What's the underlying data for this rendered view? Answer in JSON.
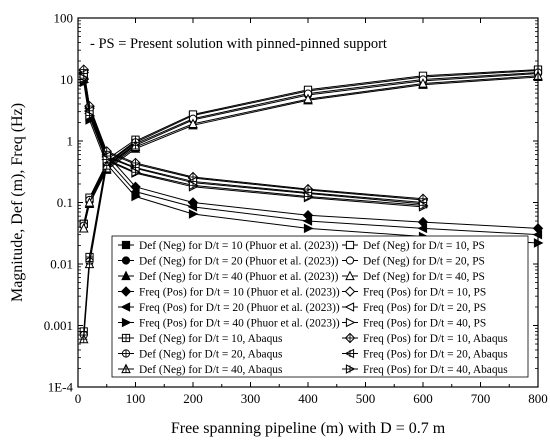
{
  "chart_data": {
    "type": "line",
    "annotation": "- PS = Present solution with pinned-pinned support",
    "xlabel": "Free spanning pipeline (m) with D = 0.7 m",
    "ylabel": "Magnitude, Def (m), Freq (Hz)",
    "xlim": [
      0,
      800
    ],
    "ylim": [
      0.0001,
      100
    ],
    "yscale": "log",
    "x_ticks": [
      "0",
      "100",
      "200",
      "300",
      "400",
      "500",
      "600",
      "700",
      "800"
    ],
    "y_ticks": [
      "1E-4",
      "0.001",
      "0.01",
      "0.1",
      "1",
      "10",
      "100"
    ],
    "legend_placement": "bottom",
    "series": [
      {
        "name": "Def (Neg) for D/t = 10 (Phuor et al. (2023))",
        "marker": "square",
        "fill": "solid",
        "x": [
          10,
          20,
          50,
          100,
          200,
          400,
          600,
          800
        ],
        "y": [
          0.045,
          0.115,
          0.42,
          0.95,
          2.6,
          6.5,
          11,
          14
        ]
      },
      {
        "name": "Def (Neg) for D/t = 20 (Phuor et al. (2023))",
        "marker": "circle",
        "fill": "solid",
        "x": [
          10,
          20,
          50,
          100,
          200,
          400,
          600,
          800
        ],
        "y": [
          0.042,
          0.105,
          0.38,
          0.85,
          2.2,
          5.6,
          9.5,
          12.5
        ]
      },
      {
        "name": "Def (Neg) for D/t = 40 (Phuor et al. (2023))",
        "marker": "triangle-up",
        "fill": "solid",
        "x": [
          10,
          20,
          50,
          100,
          200,
          400,
          600,
          800
        ],
        "y": [
          0.038,
          0.095,
          0.34,
          0.75,
          1.8,
          4.6,
          8.2,
          11
        ]
      },
      {
        "name": "Freq (Pos) for D/t = 10 (Phuor et al. (2023))",
        "marker": "diamond",
        "fill": "solid",
        "x": [
          10,
          20,
          50,
          100,
          200,
          400,
          600,
          800
        ],
        "y": [
          13,
          3.4,
          0.6,
          0.18,
          0.1,
          0.062,
          0.048,
          0.038
        ]
      },
      {
        "name": "Freq (Pos) for D/t = 20 (Phuor et al. (2023))",
        "marker": "triangle-left",
        "fill": "solid",
        "x": [
          10,
          20,
          50,
          100,
          200,
          400,
          600,
          800
        ],
        "y": [
          11,
          2.8,
          0.5,
          0.15,
          0.085,
          0.05,
          0.038,
          0.03
        ]
      },
      {
        "name": "Freq (Pos) for D/t = 40 (Phuor et al. (2023))",
        "marker": "triangle-right",
        "fill": "solid",
        "x": [
          10,
          20,
          50,
          100,
          200,
          400,
          600,
          800
        ],
        "y": [
          9,
          2.2,
          0.42,
          0.125,
          0.065,
          0.038,
          0.028,
          0.022
        ]
      },
      {
        "name": "Def (Neg) for D/t = 10, PS",
        "marker": "square",
        "fill": "open",
        "x": [
          10,
          20,
          50,
          100,
          200,
          400,
          600,
          800
        ],
        "y": [
          0.045,
          0.12,
          0.44,
          1.0,
          2.7,
          6.8,
          11.5,
          14.5
        ]
      },
      {
        "name": "Def (Neg) for D/t = 20, PS",
        "marker": "circle",
        "fill": "open",
        "x": [
          10,
          20,
          50,
          100,
          200,
          400,
          600,
          800
        ],
        "y": [
          0.042,
          0.11,
          0.4,
          0.9,
          2.3,
          5.9,
          10,
          13
        ]
      },
      {
        "name": "Def (Neg) for D/t = 40, PS",
        "marker": "triangle-up",
        "fill": "open",
        "x": [
          10,
          20,
          50,
          100,
          200,
          400,
          600,
          800
        ],
        "y": [
          0.038,
          0.1,
          0.36,
          0.8,
          1.9,
          4.8,
          8.6,
          11.5
        ]
      },
      {
        "name": "Freq (Pos) for D/t = 10, PS",
        "marker": "diamond",
        "fill": "open",
        "x": [
          10,
          20,
          50,
          100,
          200,
          400,
          600
        ],
        "y": [
          14,
          3.6,
          0.65,
          0.42,
          0.25,
          0.16,
          0.11
        ]
      },
      {
        "name": "Freq (Pos) for D/t = 20, PS",
        "marker": "triangle-left",
        "fill": "open",
        "x": [
          10,
          20,
          50,
          100,
          200,
          400,
          600
        ],
        "y": [
          12,
          3.0,
          0.55,
          0.36,
          0.21,
          0.14,
          0.095
        ]
      },
      {
        "name": "Freq (Pos) for D/t = 40, PS",
        "marker": "triangle-right",
        "fill": "open",
        "x": [
          10,
          20,
          50,
          100,
          200,
          400,
          600
        ],
        "y": [
          10,
          2.5,
          0.48,
          0.3,
          0.18,
          0.12,
          0.085
        ]
      },
      {
        "name": "Def (Neg) for D/t = 10, Abaqus",
        "marker": "square",
        "fill": "cross",
        "x": [
          10,
          20,
          50,
          100
        ],
        "y": [
          0.0008,
          0.013,
          0.5,
          1.05
        ]
      },
      {
        "name": "Def (Neg) for D/t = 20, Abaqus",
        "marker": "circle",
        "fill": "cross",
        "x": [
          10,
          20,
          50,
          100
        ],
        "y": [
          0.0007,
          0.011,
          0.45,
          0.95
        ]
      },
      {
        "name": "Def (Neg) for D/t = 40, Abaqus",
        "marker": "triangle-up",
        "fill": "cross",
        "x": [
          10,
          20,
          50,
          100
        ],
        "y": [
          0.0006,
          0.01,
          0.4,
          0.85
        ]
      },
      {
        "name": "Freq (Pos) for D/t = 10, Abaqus",
        "marker": "diamond",
        "fill": "cross",
        "x": [
          10,
          20,
          50,
          100,
          200,
          400,
          600
        ],
        "y": [
          14.5,
          3.7,
          0.68,
          0.44,
          0.26,
          0.165,
          0.115
        ]
      },
      {
        "name": "Freq (Pos) for D/t = 20, Abaqus",
        "marker": "triangle-left",
        "fill": "cross",
        "x": [
          10,
          20,
          50,
          100,
          200,
          400,
          600
        ],
        "y": [
          12.5,
          3.1,
          0.57,
          0.37,
          0.22,
          0.145,
          0.1
        ]
      },
      {
        "name": "Freq (Pos) for D/t = 40, Abaqus",
        "marker": "triangle-right",
        "fill": "cross",
        "x": [
          10,
          20,
          50,
          100,
          200,
          400,
          600
        ],
        "y": [
          10.5,
          2.6,
          0.5,
          0.31,
          0.19,
          0.125,
          0.09
        ]
      }
    ]
  }
}
